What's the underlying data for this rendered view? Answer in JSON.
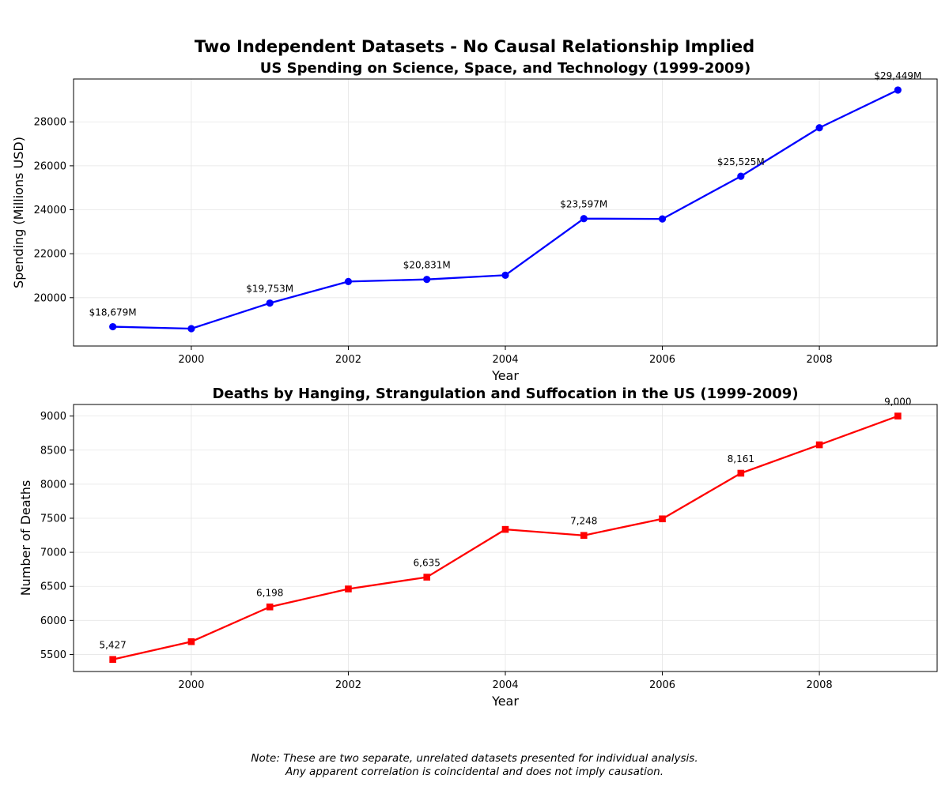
{
  "suptitle": "Two Independent Datasets - No Causal Relationship Implied",
  "note_lines": [
    "Note: These are two separate, unrelated datasets presented for individual analysis.",
    "Any apparent correlation is coincidental and does not imply causation."
  ],
  "chart_data": [
    {
      "type": "line",
      "title": "US Spending on Science, Space, and Technology (1999-2009)",
      "xlabel": "Year",
      "ylabel": "Spending (Millions USD)",
      "x": [
        1999,
        2000,
        2001,
        2002,
        2003,
        2004,
        2005,
        2006,
        2007,
        2008,
        2009
      ],
      "series": [
        {
          "values": [
            18679,
            18590,
            19753,
            20734,
            20831,
            21023,
            23597,
            23584,
            25525,
            27731,
            29449
          ],
          "color": "#0000ff",
          "marker": "circle"
        }
      ],
      "data_labels": [
        {
          "x": 1999,
          "y": 18679,
          "text": "$18,679M"
        },
        {
          "x": 2001,
          "y": 19753,
          "text": "$19,753M"
        },
        {
          "x": 2003,
          "y": 20831,
          "text": "$20,831M"
        },
        {
          "x": 2005,
          "y": 23597,
          "text": "$23,597M"
        },
        {
          "x": 2007,
          "y": 25525,
          "text": "$25,525M"
        },
        {
          "x": 2009,
          "y": 29449,
          "text": "$29,449M"
        }
      ],
      "xlim": [
        1998.5,
        2009.5
      ],
      "ylim": [
        17800,
        29950
      ],
      "xticks": [
        2000,
        2002,
        2004,
        2006,
        2008
      ],
      "yticks": [
        20000,
        22000,
        24000,
        26000,
        28000
      ],
      "grid": true
    },
    {
      "type": "line",
      "title": "Deaths by Hanging, Strangulation and Suffocation in the US (1999-2009)",
      "xlabel": "Year",
      "ylabel": "Number of Deaths",
      "x": [
        1999,
        2000,
        2001,
        2002,
        2003,
        2004,
        2005,
        2006,
        2007,
        2008,
        2009
      ],
      "series": [
        {
          "values": [
            5427,
            5688,
            6198,
            6462,
            6635,
            7336,
            7248,
            7491,
            8161,
            8578,
            9000
          ],
          "color": "#ff0000",
          "marker": "square"
        }
      ],
      "data_labels": [
        {
          "x": 1999,
          "y": 5427,
          "text": "5,427"
        },
        {
          "x": 2001,
          "y": 6198,
          "text": "6,198"
        },
        {
          "x": 2003,
          "y": 6635,
          "text": "6,635"
        },
        {
          "x": 2005,
          "y": 7248,
          "text": "7,248"
        },
        {
          "x": 2007,
          "y": 8161,
          "text": "8,161"
        },
        {
          "x": 2009,
          "y": 9000,
          "text": "9,000"
        }
      ],
      "xlim": [
        1998.5,
        2009.5
      ],
      "ylim": [
        5250,
        9170
      ],
      "xticks": [
        2000,
        2002,
        2004,
        2006,
        2008
      ],
      "yticks": [
        5500,
        6000,
        6500,
        7000,
        7500,
        8000,
        8500,
        9000
      ],
      "grid": true
    }
  ]
}
